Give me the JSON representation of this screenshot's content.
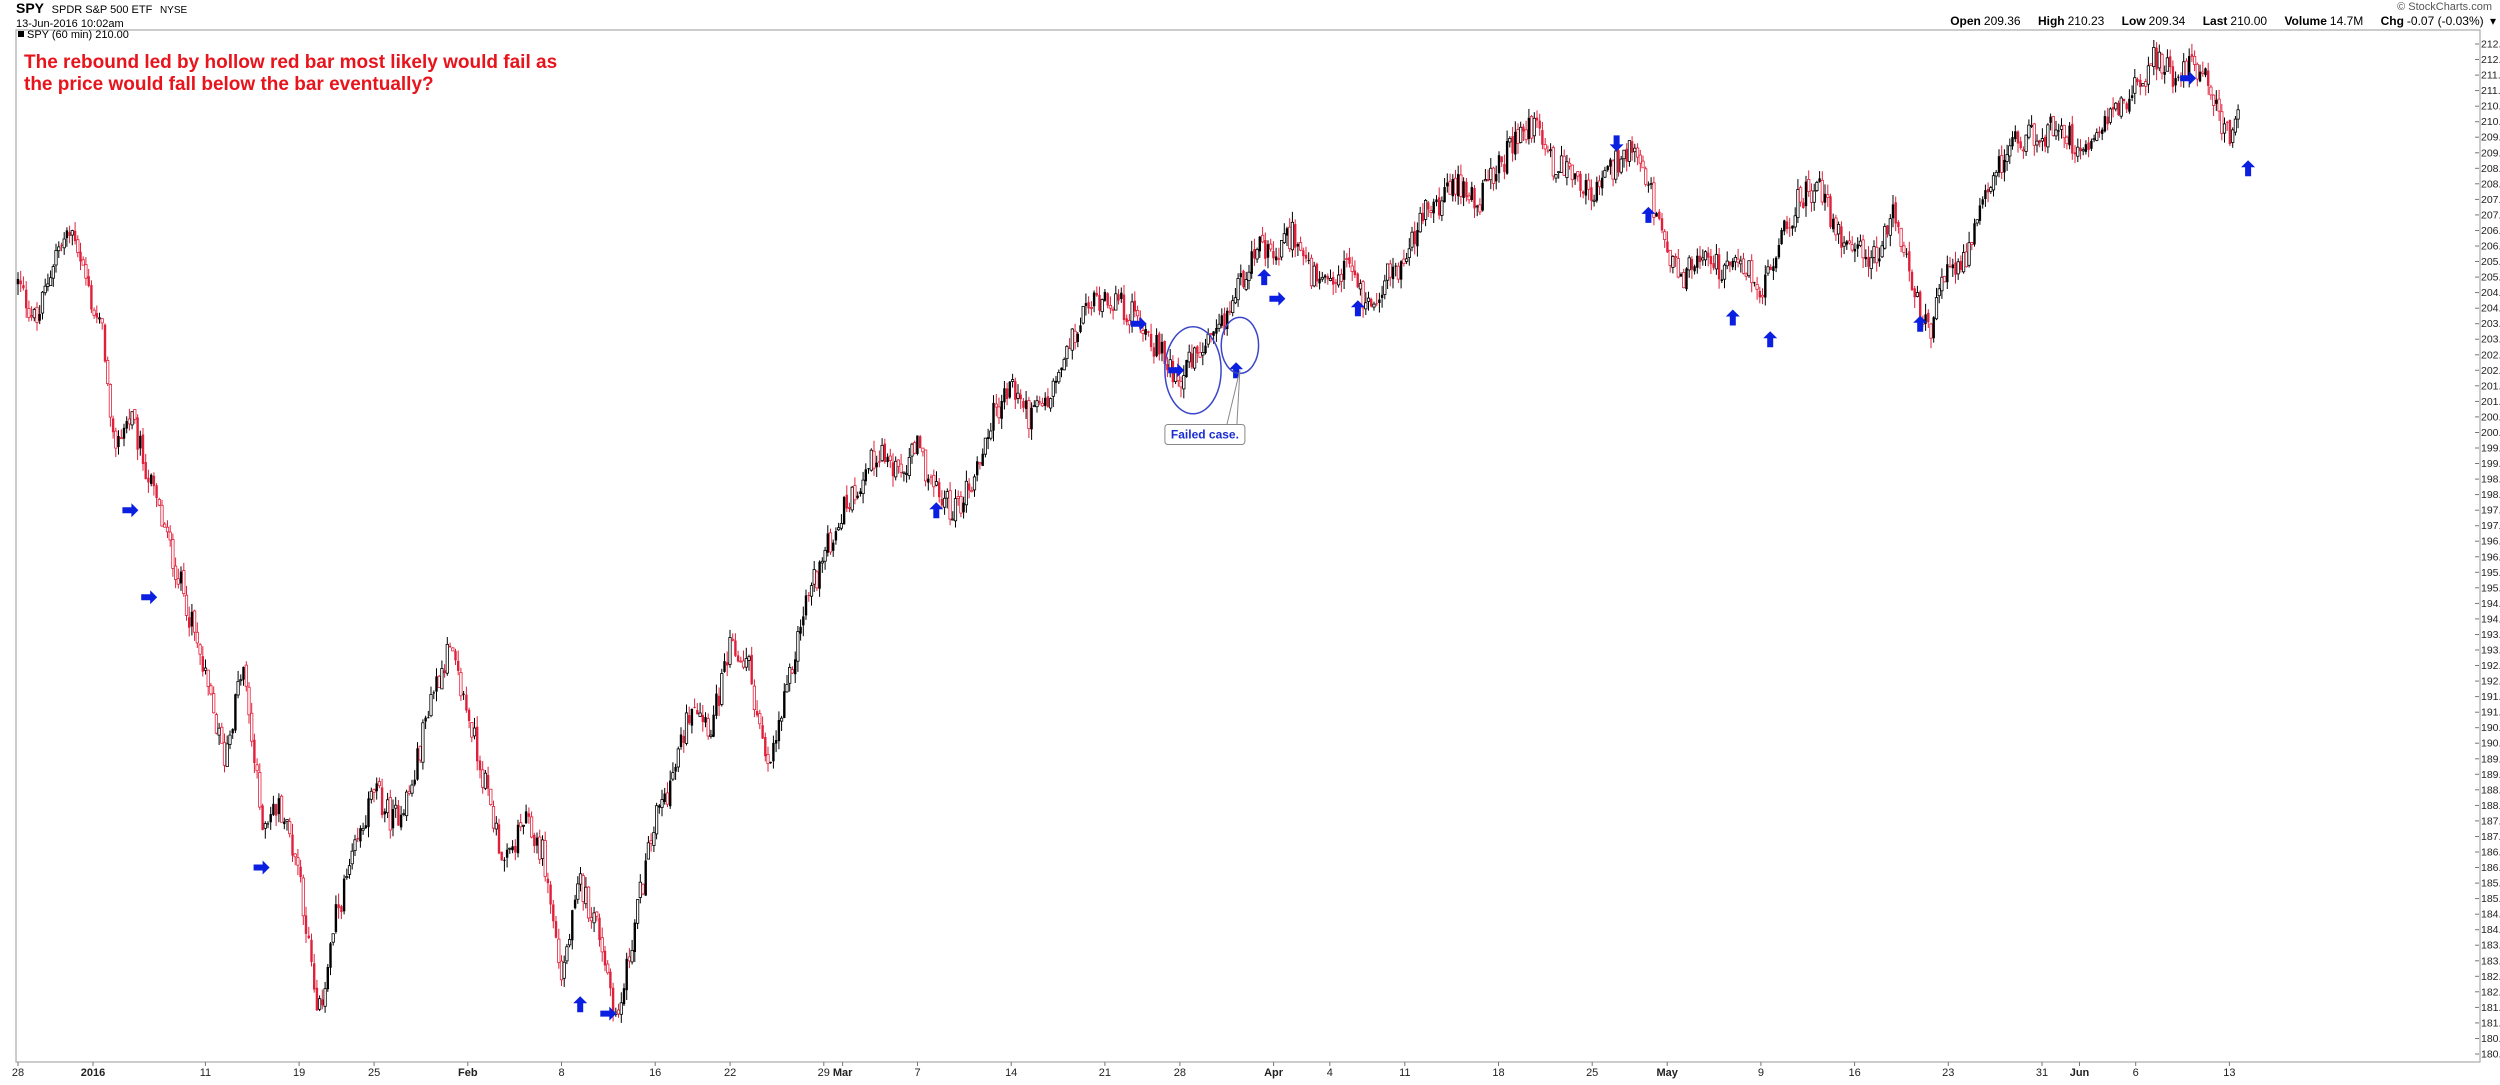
{
  "header": {
    "ticker": "SPY",
    "name": "SPDR S&P 500 ETF",
    "exchange": "NYSE",
    "date_time": "13-Jun-2016 10:02am",
    "brand": "© StockCharts.com",
    "ohlc": [
      {
        "label": "Open",
        "value": "209.36"
      },
      {
        "label": "High",
        "value": "210.23"
      },
      {
        "label": "Low",
        "value": "209.34"
      },
      {
        "label": "Last",
        "value": "210.00"
      },
      {
        "label": "Volume",
        "value": "14.7M"
      },
      {
        "label": "Chg",
        "value": "-0.07 (-0.03%)"
      }
    ]
  },
  "colors": {
    "up": "#000000",
    "down": "#e0203a",
    "arrow": "#0a1fe0",
    "annotation": "#e8141c",
    "circle": "#3a46c9"
  },
  "chart_data": {
    "type": "candlestick",
    "title": "",
    "legend": "SPY (60 min) 210.00",
    "annotation_text": [
      "The rebound led by hollow red bar most likely would fail as",
      "the price would fall below the bar eventually?"
    ],
    "callout_text": "Failed case.",
    "ylim": [
      180.0,
      212.5
    ],
    "y_tick_step": 0.5,
    "x_domain": [
      0,
      131
    ],
    "x_ticks": [
      {
        "label": "28",
        "x": 0
      },
      {
        "label": "2016",
        "x": 4
      },
      {
        "label": "11",
        "x": 10
      },
      {
        "label": "19",
        "x": 15
      },
      {
        "label": "25",
        "x": 19
      },
      {
        "label": "Feb",
        "x": 24
      },
      {
        "label": "8",
        "x": 29
      },
      {
        "label": "16",
        "x": 34
      },
      {
        "label": "22",
        "x": 38
      },
      {
        "label": "29",
        "x": 43
      },
      {
        "label": "Mar",
        "x": 44
      },
      {
        "label": "7",
        "x": 48
      },
      {
        "label": "14",
        "x": 53
      },
      {
        "label": "21",
        "x": 58
      },
      {
        "label": "28",
        "x": 62
      },
      {
        "label": "Apr",
        "x": 67
      },
      {
        "label": "4",
        "x": 70
      },
      {
        "label": "11",
        "x": 74
      },
      {
        "label": "18",
        "x": 79
      },
      {
        "label": "25",
        "x": 84
      },
      {
        "label": "May",
        "x": 88
      },
      {
        "label": "9",
        "x": 93
      },
      {
        "label": "16",
        "x": 98
      },
      {
        "label": "23",
        "x": 103
      },
      {
        "label": "31",
        "x": 108
      },
      {
        "label": "Jun",
        "x": 110
      },
      {
        "label": "6",
        "x": 113
      },
      {
        "label": "13",
        "x": 118
      }
    ],
    "close_path": [
      [
        0,
        204.8
      ],
      [
        1,
        203.5
      ],
      [
        2,
        205.8
      ],
      [
        3,
        206.5
      ],
      [
        4,
        204.0
      ],
      [
        4.6,
        203.0
      ],
      [
        5,
        199.5
      ],
      [
        6,
        200.5
      ],
      [
        7,
        198.5
      ],
      [
        8,
        196.5
      ],
      [
        9,
        194.5
      ],
      [
        10,
        192.0
      ],
      [
        11,
        189.5
      ],
      [
        12,
        192.5
      ],
      [
        13,
        187.5
      ],
      [
        14,
        188.0
      ],
      [
        15,
        186.0
      ],
      [
        16,
        181.0
      ],
      [
        17,
        184.5
      ],
      [
        18,
        186.5
      ],
      [
        19,
        188.5
      ],
      [
        20,
        187.5
      ],
      [
        21,
        188.5
      ],
      [
        22,
        191.5
      ],
      [
        23,
        193.0
      ],
      [
        24,
        191.0
      ],
      [
        25,
        188.5
      ],
      [
        26,
        186.0
      ],
      [
        27,
        187.5
      ],
      [
        28,
        186.5
      ],
      [
        29,
        182.5
      ],
      [
        30,
        185.5
      ],
      [
        31,
        184.0
      ],
      [
        32,
        181.0
      ],
      [
        33,
        184.5
      ],
      [
        34,
        187.5
      ],
      [
        35,
        189.0
      ],
      [
        36,
        191.5
      ],
      [
        37,
        190.5
      ],
      [
        38,
        193.0
      ],
      [
        39,
        192.5
      ],
      [
        40,
        189.0
      ],
      [
        41,
        191.5
      ],
      [
        42,
        194.5
      ],
      [
        43,
        196.0
      ],
      [
        44,
        197.5
      ],
      [
        45,
        198.5
      ],
      [
        46,
        199.5
      ],
      [
        47,
        198.5
      ],
      [
        48,
        199.5
      ],
      [
        49,
        198.0
      ],
      [
        50,
        197.5
      ],
      [
        51,
        198.5
      ],
      [
        52,
        200.5
      ],
      [
        53,
        201.5
      ],
      [
        54,
        200.5
      ],
      [
        55,
        201.0
      ],
      [
        56,
        202.5
      ],
      [
        57,
        204.0
      ],
      [
        58,
        204.5
      ],
      [
        59,
        204.0
      ],
      [
        60,
        203.5
      ],
      [
        61,
        202.5
      ],
      [
        62,
        201.8
      ],
      [
        63,
        202.5
      ],
      [
        64,
        203.0
      ],
      [
        65,
        204.5
      ],
      [
        66,
        206.0
      ],
      [
        67,
        205.5
      ],
      [
        68,
        206.5
      ],
      [
        69,
        205.0
      ],
      [
        70,
        204.5
      ],
      [
        71,
        205.5
      ],
      [
        72,
        204.0
      ],
      [
        73,
        205.0
      ],
      [
        74,
        205.5
      ],
      [
        75,
        207.0
      ],
      [
        76,
        207.5
      ],
      [
        77,
        208.0
      ],
      [
        78,
        207.5
      ],
      [
        79,
        208.5
      ],
      [
        80,
        209.5
      ],
      [
        81,
        210.0
      ],
      [
        82,
        208.5
      ],
      [
        83,
        208.5
      ],
      [
        84,
        207.5
      ],
      [
        85,
        208.5
      ],
      [
        86,
        209.0
      ],
      [
        87,
        208.0
      ],
      [
        88,
        205.5
      ],
      [
        89,
        205.0
      ],
      [
        90,
        206.0
      ],
      [
        91,
        205.0
      ],
      [
        92,
        205.5
      ],
      [
        93,
        204.5
      ],
      [
        94,
        206.0
      ],
      [
        95,
        207.5
      ],
      [
        96,
        208.0
      ],
      [
        97,
        206.5
      ],
      [
        98,
        206.0
      ],
      [
        99,
        205.5
      ],
      [
        100,
        207.0
      ],
      [
        101,
        205.0
      ],
      [
        102,
        203.0
      ],
      [
        103,
        205.5
      ],
      [
        104,
        205.5
      ],
      [
        105,
        207.5
      ],
      [
        106,
        209.0
      ],
      [
        107,
        209.5
      ],
      [
        108,
        209.5
      ],
      [
        109,
        210.0
      ],
      [
        110,
        209.0
      ],
      [
        111,
        210.0
      ],
      [
        112,
        210.5
      ],
      [
        113,
        211.0
      ],
      [
        114,
        212.0
      ],
      [
        115,
        211.5
      ],
      [
        116,
        212.0
      ],
      [
        116.8,
        211.5
      ],
      [
        117.5,
        210.0
      ],
      [
        118,
        209.5
      ],
      [
        118.5,
        210.0
      ]
    ],
    "markers": [
      {
        "type": "arrow-right",
        "x": 6,
        "y": 197.5
      },
      {
        "type": "arrow-right",
        "x": 7,
        "y": 194.7
      },
      {
        "type": "arrow-right",
        "x": 13,
        "y": 186.0
      },
      {
        "type": "arrow-up",
        "x": 30,
        "y": 181.6
      },
      {
        "type": "arrow-right",
        "x": 31.5,
        "y": 181.3
      },
      {
        "type": "arrow-up",
        "x": 49,
        "y": 197.5
      },
      {
        "type": "arrow-right",
        "x": 59.8,
        "y": 203.5
      },
      {
        "type": "arrow-right",
        "x": 61.8,
        "y": 202.0
      },
      {
        "type": "arrow-up",
        "x": 65,
        "y": 202.0
      },
      {
        "type": "arrow-up",
        "x": 66.5,
        "y": 205.0
      },
      {
        "type": "arrow-right",
        "x": 67.2,
        "y": 204.3
      },
      {
        "type": "arrow-up",
        "x": 71.5,
        "y": 204.0
      },
      {
        "type": "arrow-down",
        "x": 85.3,
        "y": 209.3
      },
      {
        "type": "arrow-up",
        "x": 87.0,
        "y": 207.0
      },
      {
        "type": "arrow-up",
        "x": 91.5,
        "y": 203.7
      },
      {
        "type": "arrow-up",
        "x": 93.5,
        "y": 203.0
      },
      {
        "type": "arrow-up",
        "x": 101.5,
        "y": 203.5
      },
      {
        "type": "arrow-right",
        "x": 115.8,
        "y": 211.4
      },
      {
        "type": "arrow-up",
        "x": 119.0,
        "y": 208.5
      }
    ],
    "circles": [
      {
        "x": 62.7,
        "y": 202.0,
        "rx": 1.5,
        "ry": 1.4
      },
      {
        "x": 65.2,
        "y": 202.8,
        "rx": 1.0,
        "ry": 0.9
      }
    ],
    "callout": {
      "x": 61.2,
      "y": 200.0,
      "tail_x": 65.2,
      "tail_y": 202.0
    }
  }
}
